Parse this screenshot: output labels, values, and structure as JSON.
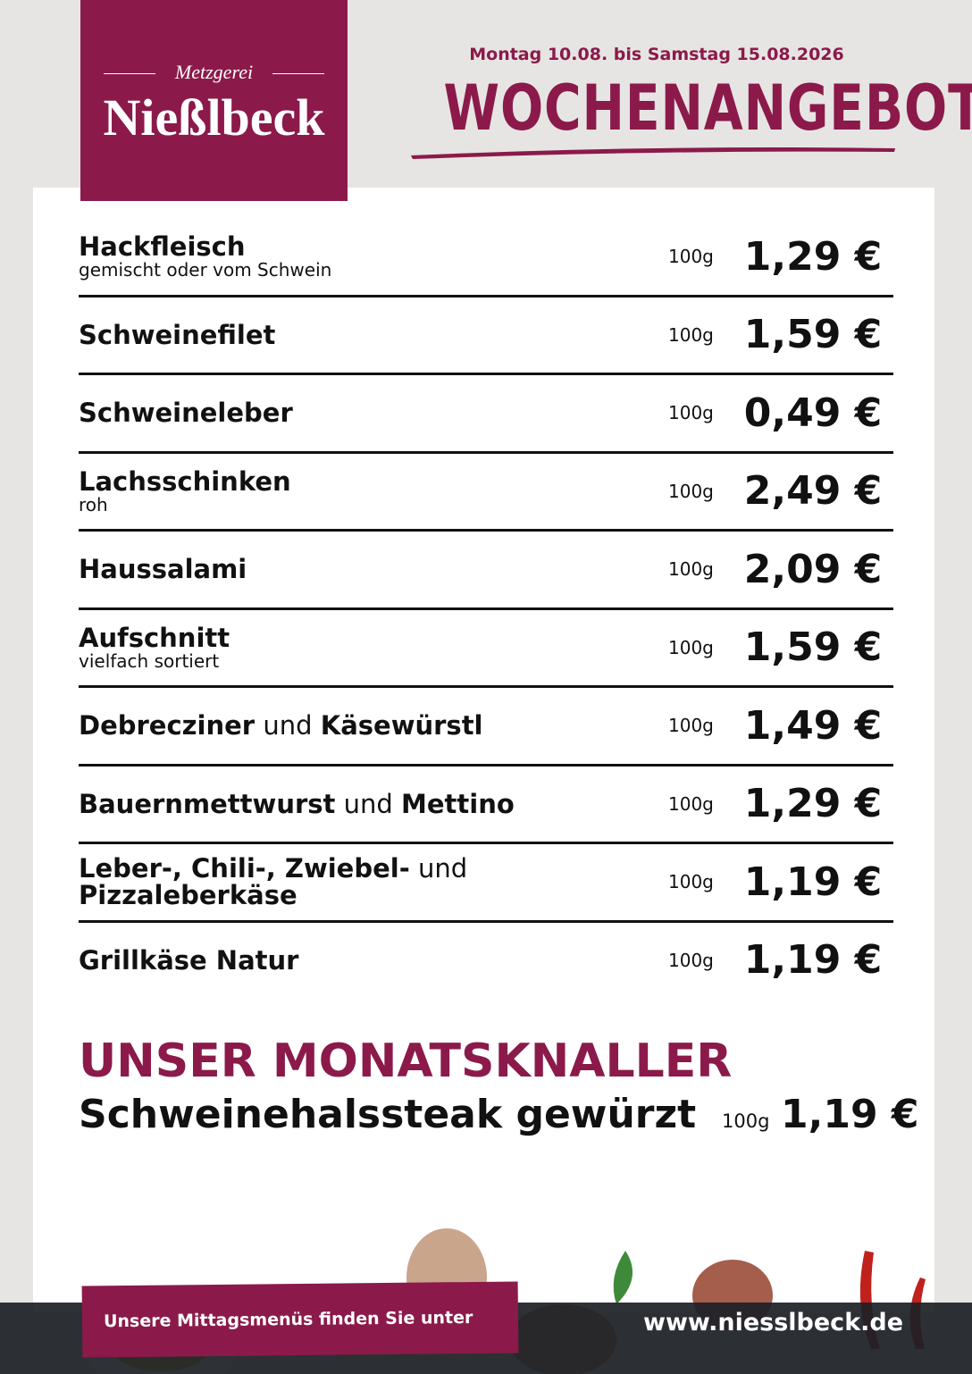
{
  "header": {
    "logo_top": "Metzgerei",
    "logo_name": "Nießlbeck",
    "date_range": "Montag 10.08. bis Samstag 15.08.2026",
    "title": "WOCHENANGEBOT"
  },
  "items": [
    {
      "name": [
        {
          "text": "Hackfleisch",
          "bold": true
        }
      ],
      "subtitle": "gemischt oder vom Schwein",
      "unit": "100g",
      "price": "1,29 €"
    },
    {
      "name": [
        {
          "text": "Schweinefilet",
          "bold": true
        }
      ],
      "unit": "100g",
      "price": "1,59 €"
    },
    {
      "name": [
        {
          "text": "Schweineleber",
          "bold": true
        }
      ],
      "unit": "100g",
      "price": "0,49 €"
    },
    {
      "name": [
        {
          "text": "Lachsschinken",
          "bold": true
        }
      ],
      "subtitle": "roh",
      "unit": "100g",
      "price": "2,49 €"
    },
    {
      "name": [
        {
          "text": "Haussalami",
          "bold": true
        }
      ],
      "unit": "100g",
      "price": "2,09 €"
    },
    {
      "name": [
        {
          "text": "Aufschnitt",
          "bold": true
        }
      ],
      "subtitle": "vielfach sortiert",
      "unit": "100g",
      "price": "1,59 €"
    },
    {
      "name": [
        {
          "text": "Debrecziner",
          "bold": true
        },
        {
          "text": "und",
          "bold": false
        },
        {
          "text": "Käsewürstl",
          "bold": true
        }
      ],
      "unit": "100g",
      "price": "1,49 €"
    },
    {
      "name": [
        {
          "text": "Bauernmettwurst",
          "bold": true
        },
        {
          "text": "und",
          "bold": false
        },
        {
          "text": "Mettino",
          "bold": true
        }
      ],
      "unit": "100g",
      "price": "1,29 €"
    },
    {
      "name": [
        {
          "text": "Leber-, Chili-, Zwiebel-",
          "bold": true
        },
        {
          "text": "und",
          "bold": false
        },
        {
          "text": "Pizzaleberkäse",
          "bold": true
        }
      ],
      "unit": "100g",
      "price": "1,19 €"
    },
    {
      "name": [
        {
          "text": "Grillkäse Natur",
          "bold": true
        }
      ],
      "unit": "100g",
      "price": "1,19 €"
    }
  ],
  "special": {
    "heading": "UNSER MONATSKNALLER",
    "product": "Schweinehalssteak gewürzt",
    "unit": "100g",
    "price": "1,19 €"
  },
  "footer": {
    "banner": "Unsere Mittagsmenüs finden Sie unter",
    "url": "www.niesslbeck.de"
  }
}
